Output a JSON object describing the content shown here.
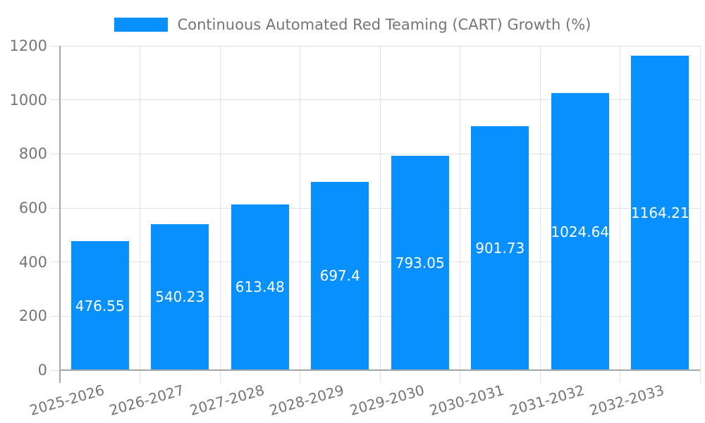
{
  "chart_data": {
    "type": "bar",
    "title": "Continuous Automated Red Teaming (CART) Growth (%)",
    "xlabel": "",
    "ylabel": "",
    "categories": [
      "2025-2026",
      "2026-2027",
      "2027-2028",
      "2028-2029",
      "2029-2030",
      "2030-2031",
      "2031-2032",
      "2032-2033"
    ],
    "values": [
      476.55,
      540.23,
      613.48,
      697.4,
      793.05,
      901.73,
      1024.64,
      1164.21
    ],
    "value_labels": [
      "476.55",
      "540.23",
      "613.48",
      "697.4",
      "793.05",
      "901.73",
      "1024.64",
      "1164.21"
    ],
    "ylim": [
      0,
      1200
    ],
    "yticks": [
      0,
      200,
      400,
      600,
      800,
      1000,
      1200
    ],
    "grid": true,
    "legend_position": "top",
    "colors": {
      "bar": "#0890ff",
      "value_label": "#ffffff",
      "grid": "#e0e0e0",
      "axis": "#a6a6a6",
      "tick_label": "#757575",
      "legend_text": "#757575"
    }
  }
}
